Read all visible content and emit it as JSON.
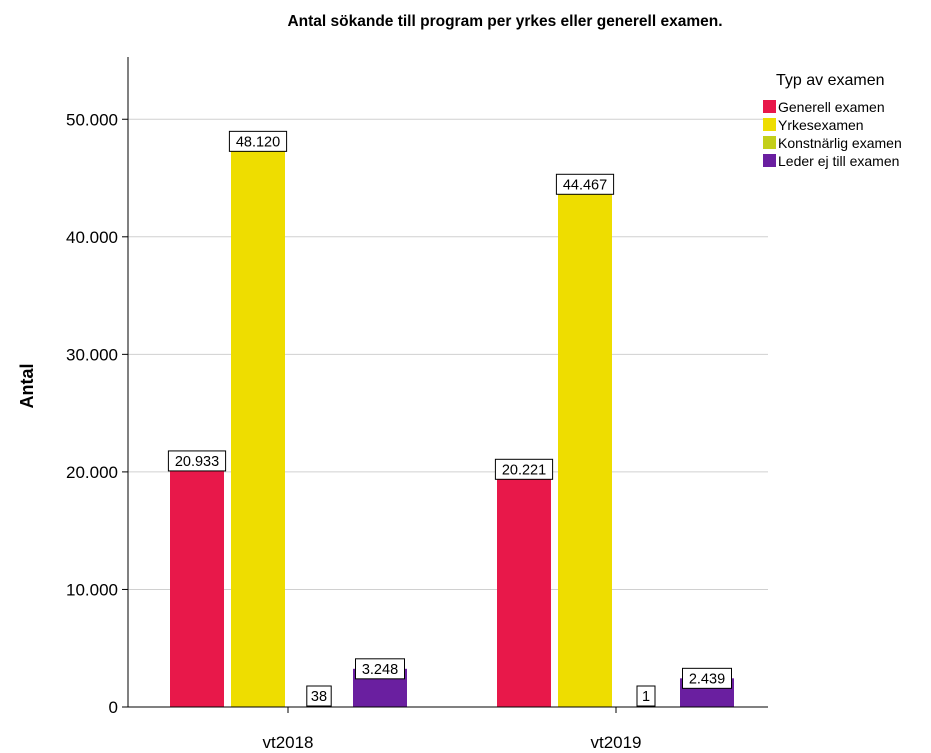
{
  "chart_data": {
    "type": "bar",
    "title": "Antal sökande till program per yrkes eller generell examen.",
    "xlabel": "",
    "ylabel": "Antal",
    "categories": [
      "vt2018",
      "vt2019"
    ],
    "ylim": [
      0,
      55000
    ],
    "yticks": [
      0,
      10000,
      20000,
      30000,
      40000,
      50000
    ],
    "ytick_labels": [
      "0",
      "10.000",
      "20.000",
      "30.000",
      "40.000",
      "50.000"
    ],
    "grid": true,
    "legend_title": "Typ av examen",
    "legend_position": "top-right",
    "series": [
      {
        "name": "Generell examen",
        "color": "#e8184a",
        "values": [
          20933,
          20221
        ],
        "labels": [
          "20.933",
          "20.221"
        ]
      },
      {
        "name": "Yrkesexamen",
        "color": "#eedd00",
        "values": [
          48120,
          44467
        ],
        "labels": [
          "48.120",
          "44.467"
        ]
      },
      {
        "name": "Konstnärlig examen",
        "color": "#c3cf1a",
        "values": [
          38,
          1
        ],
        "labels": [
          "38",
          "1"
        ]
      },
      {
        "name": "Leder ej till examen",
        "color": "#6a1fa0",
        "values": [
          3248,
          2439
        ],
        "labels": [
          "3.248",
          "2.439"
        ]
      }
    ]
  }
}
